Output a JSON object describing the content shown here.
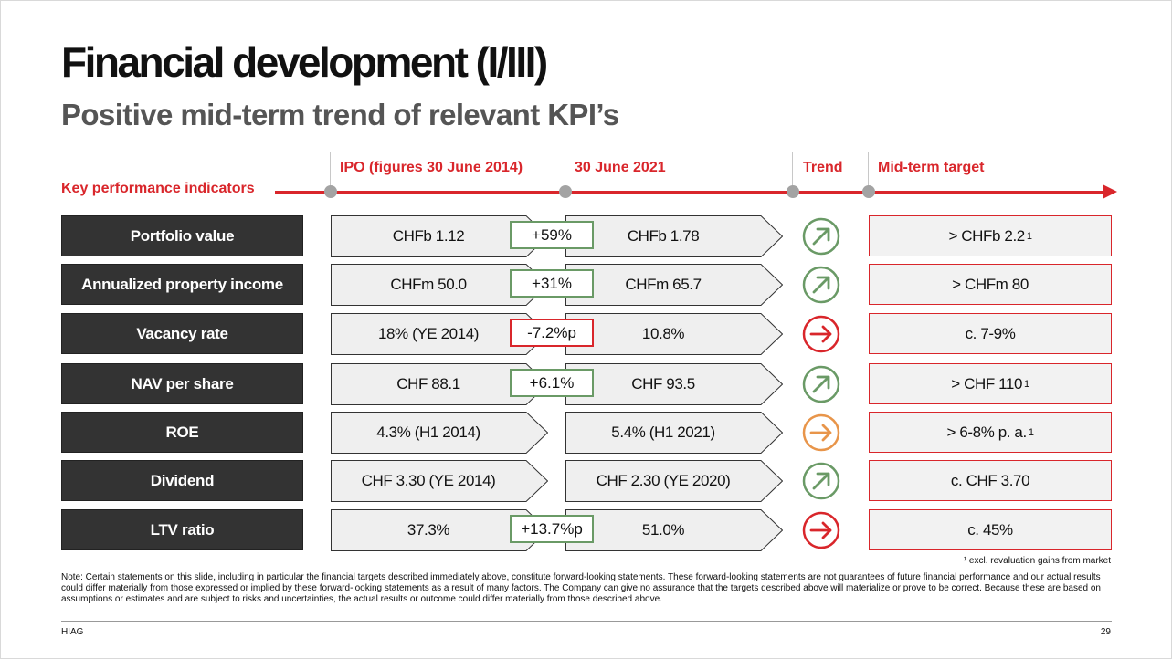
{
  "title": "Financial development (I/III)",
  "subtitle": "Positive mid-term trend of relevant KPI’s",
  "headers": {
    "kpi": "Key performance indicators",
    "ipo": "IPO (figures 30 June  2014)",
    "current": "30 June 2021",
    "trend": "Trend",
    "target": "Mid-term target"
  },
  "rows": [
    {
      "kpi": "Portfolio value",
      "ipo": "CHFb 1.12",
      "change": "+59%",
      "change_status": "positive",
      "current": "CHFb 1.78",
      "trend": "up",
      "trend_color": "#6a9a66",
      "target": "> CHFb 2.2",
      "target_note": "1"
    },
    {
      "kpi": "Annualized property income",
      "ipo": "CHFm 50.0",
      "change": "+31%",
      "change_status": "positive",
      "current": "CHFm 65.7",
      "trend": "up",
      "trend_color": "#6a9a66",
      "target": "> CHFm 80",
      "target_note": ""
    },
    {
      "kpi": "Vacancy rate",
      "ipo": "18% (YE 2014)",
      "change": "-7.2%p",
      "change_status": "negative",
      "current": "10.8%",
      "trend": "right",
      "trend_color": "#d9262b",
      "target": "c. 7-9%",
      "target_note": ""
    },
    {
      "kpi": "NAV per share",
      "ipo": "CHF 88.1",
      "change": "+6.1%",
      "change_status": "positive",
      "current": "CHF 93.5",
      "trend": "up",
      "trend_color": "#6a9a66",
      "target": "> CHF 110",
      "target_note": "1"
    },
    {
      "kpi": "ROE",
      "ipo": "4.3% (H1 2014)",
      "change": "",
      "change_status": "none",
      "current": "5.4% (H1 2021)",
      "trend": "right",
      "trend_color": "#e8954a",
      "target": "> 6-8% p. a.",
      "target_note": "1"
    },
    {
      "kpi": "Dividend",
      "ipo": "CHF 3.30 (YE 2014)",
      "change": "",
      "change_status": "none",
      "current": "CHF 2.30 (YE 2020)",
      "trend": "up",
      "trend_color": "#6a9a66",
      "target": "c. CHF 3.70",
      "target_note": ""
    },
    {
      "kpi": "LTV ratio",
      "ipo": "37.3%",
      "change": "+13.7%p",
      "change_status": "positive",
      "current": "51.0%",
      "trend": "right",
      "trend_color": "#d9262b",
      "target": "c. 45%",
      "target_note": ""
    }
  ],
  "footnote": "¹ excl. revaluation gains from market",
  "note": "Note: Certain statements on this slide, including in particular the financial targets described immediately above, constitute forward-looking statements. These forward-looking statements are not guarantees of future financial performance and our actual results could differ materially from those expressed or implied by these forward-looking statements as a result of many factors. The Company can give no assurance that the targets described above will materialize or prove to be correct. Because these are based on assumptions or estimates and are subject to risks and uncertainties, the actual results or outcome could differ materially from those described above.",
  "footer": {
    "left": "HIAG",
    "page": "29"
  },
  "colors": {
    "accent_red": "#d9262b",
    "positive_green": "#6a9a66",
    "neutral_orange": "#e8954a",
    "dark_box": "#333333"
  }
}
